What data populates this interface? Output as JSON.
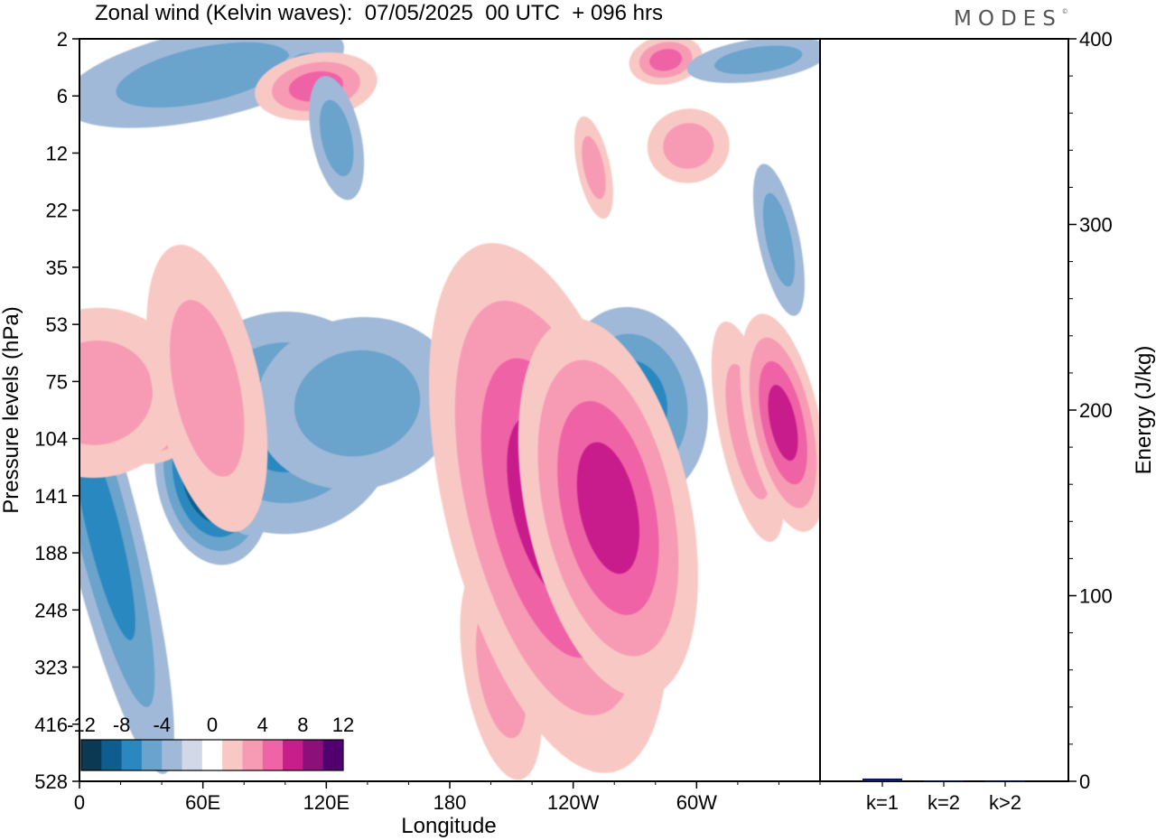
{
  "title": "Zonal wind (Kelvin waves):  07/05/2025  00 UTC  + 096 hrs",
  "brand": "MODES",
  "brand_mark": "©",
  "colors": {
    "neg": [
      "#0b3954",
      "#0d5e8e",
      "#2a88c0",
      "#6aa3cc",
      "#a1b9d8",
      "#d3d8e8"
    ],
    "zero": "#ffffff",
    "pos": [
      "#f8c9c4",
      "#f79bb4",
      "#ef64a6",
      "#c81e8c",
      "#8c0f7a",
      "#520070"
    ],
    "energy_bar": "#0c1a5e"
  },
  "chart_data": [
    {
      "type": "heatmap",
      "xlabel": "Longitude",
      "ylabel": "Pressure levels (hPa)",
      "x_ticks": [
        "0",
        "60E",
        "120E",
        "180",
        "120W",
        "60W"
      ],
      "y_ticks": [
        "2",
        "6",
        "12",
        "22",
        "35",
        "53",
        "75",
        "104",
        "141",
        "188",
        "248",
        "323",
        "416",
        "528"
      ],
      "y_scale": "log",
      "colorbar": {
        "labels": [
          "-12",
          "-8",
          "-4",
          "0",
          "4",
          "8",
          "12"
        ],
        "levels": [
          -12,
          -10,
          -8,
          -6,
          -4,
          -2,
          2,
          4,
          6,
          8,
          10,
          12
        ]
      },
      "features": [
        {
          "lon": 12,
          "p": 170,
          "value": -5
        },
        {
          "lon": 65,
          "p": 125,
          "value": -11
        },
        {
          "lon": 78,
          "p": 115,
          "value": -13
        },
        {
          "lon": 100,
          "p": 95,
          "value": -6
        },
        {
          "lon": 135,
          "p": 85,
          "value": -3
        },
        {
          "lon": 270,
          "p": 85,
          "value": -5
        },
        {
          "lon": 33,
          "p": 85,
          "value": 9
        },
        {
          "lon": 8,
          "p": 80,
          "value": 4
        },
        {
          "lon": 62,
          "p": 78,
          "value": 3
        },
        {
          "lon": 207,
          "p": 180,
          "value": 4
        },
        {
          "lon": 205,
          "p": 330,
          "value": 4
        },
        {
          "lon": 228,
          "p": 150,
          "value": 7
        },
        {
          "lon": 257,
          "p": 150,
          "value": 7
        },
        {
          "lon": 325,
          "p": 100,
          "value": 4
        },
        {
          "lon": 342,
          "p": 95,
          "value": 8
        },
        {
          "lon": 60,
          "p": 4,
          "value": -4
        },
        {
          "lon": 110,
          "p": 3,
          "value": -5
        },
        {
          "lon": 115,
          "p": 5,
          "value": 6
        },
        {
          "lon": 285,
          "p": 3,
          "value": 5
        },
        {
          "lon": 330,
          "p": 3,
          "value": -4
        },
        {
          "lon": 296,
          "p": 11,
          "value": 3
        },
        {
          "lon": 125,
          "p": 10,
          "value": -3
        },
        {
          "lon": 250,
          "p": 14,
          "value": 3
        },
        {
          "lon": 340,
          "p": 28,
          "value": -3
        }
      ]
    },
    {
      "type": "bar",
      "ylabel": "Energy (J/kg)",
      "categories": [
        "k=1",
        "k=2",
        "k>2"
      ],
      "values": [
        1.5,
        0.3,
        0.2
      ],
      "ylim": [
        0,
        400
      ],
      "y_ticks": [
        "0",
        "100",
        "200",
        "300",
        "400"
      ]
    }
  ]
}
